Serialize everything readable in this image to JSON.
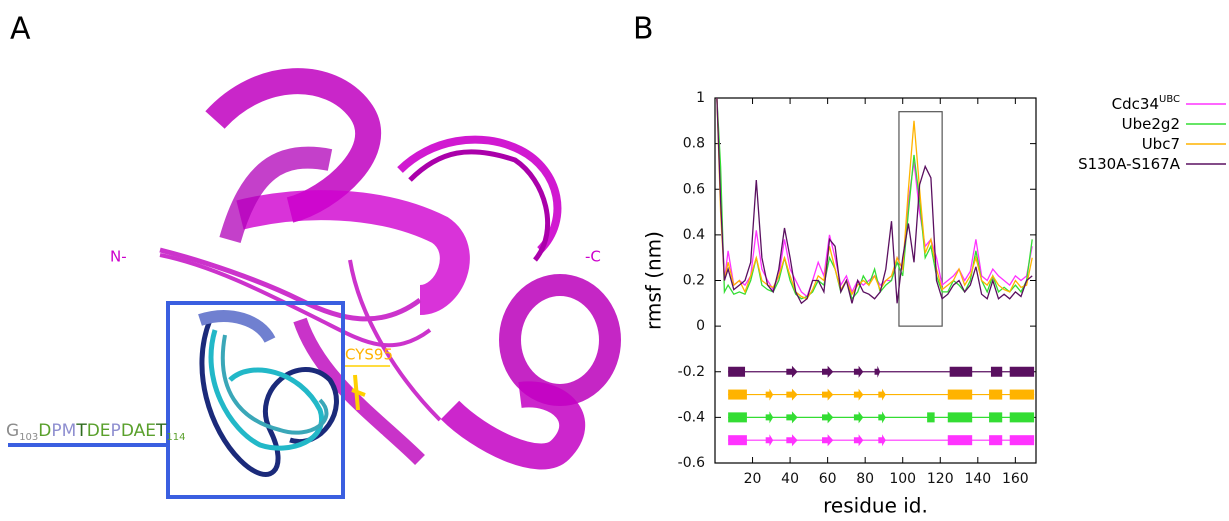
{
  "panel_a": {
    "label": "A",
    "n_label": "N-",
    "c_label": "-C",
    "residue_label": "CYS95",
    "sequence": [
      {
        "text": "G",
        "color": "#8c8c8c"
      },
      {
        "text": "103",
        "color": "#8c8c8c",
        "sub": true
      },
      {
        "text": "D",
        "color": "#5aa02c"
      },
      {
        "text": "P",
        "color": "#8f8fd0"
      },
      {
        "text": "M",
        "color": "#8f8fd0"
      },
      {
        "text": "T",
        "color": "#2e6b1e"
      },
      {
        "text": "D",
        "color": "#5aa02c"
      },
      {
        "text": "E",
        "color": "#5aa02c"
      },
      {
        "text": "P",
        "color": "#8f8fd0"
      },
      {
        "text": "D",
        "color": "#5aa02c"
      },
      {
        "text": "A",
        "color": "#5aa02c"
      },
      {
        "text": "E",
        "color": "#5aa02c"
      },
      {
        "text": "T",
        "color": "#2e6b1e"
      },
      {
        "text": "114",
        "color": "#5aa02c",
        "sub": true
      }
    ]
  },
  "chart_data": {
    "type": "line",
    "panel_label": "B",
    "x_label": "residue id.",
    "y_label": "rmsf (nm)",
    "xlim": [
      0,
      171
    ],
    "ylim": [
      -0.6,
      1
    ],
    "xticks": [
      20,
      40,
      60,
      80,
      100,
      120,
      140,
      160
    ],
    "yticks": [
      -0.6,
      -0.4,
      -0.2,
      0,
      0.2,
      0.4,
      0.6,
      0.8,
      1
    ],
    "x": [
      1,
      3,
      5,
      7,
      10,
      13,
      16,
      19,
      22,
      25,
      28,
      31,
      34,
      37,
      40,
      43,
      46,
      49,
      52,
      55,
      58,
      61,
      64,
      67,
      70,
      73,
      76,
      79,
      82,
      85,
      88,
      91,
      94,
      97,
      100,
      103,
      106,
      109,
      112,
      115,
      118,
      121,
      124,
      127,
      130,
      133,
      136,
      139,
      142,
      145,
      148,
      151,
      154,
      157,
      160,
      163,
      166,
      169
    ],
    "series": [
      {
        "name": "Cdc34",
        "name_superscript": "UBC",
        "color": "#ff33ff",
        "values": [
          1.0,
          0.6,
          0.2,
          0.33,
          0.18,
          0.2,
          0.18,
          0.22,
          0.42,
          0.25,
          0.2,
          0.16,
          0.22,
          0.38,
          0.25,
          0.2,
          0.15,
          0.13,
          0.2,
          0.28,
          0.22,
          0.4,
          0.3,
          0.18,
          0.22,
          0.15,
          0.2,
          0.18,
          0.2,
          0.22,
          0.18,
          0.2,
          0.2,
          0.3,
          0.25,
          0.55,
          0.72,
          0.5,
          0.35,
          0.38,
          0.3,
          0.18,
          0.2,
          0.22,
          0.25,
          0.2,
          0.24,
          0.38,
          0.22,
          0.2,
          0.25,
          0.22,
          0.2,
          0.18,
          0.22,
          0.2,
          0.22,
          0.35
        ]
      },
      {
        "name": "Ube2g2",
        "color": "#33dd33",
        "values": [
          1.0,
          0.7,
          0.15,
          0.18,
          0.14,
          0.15,
          0.14,
          0.2,
          0.3,
          0.18,
          0.16,
          0.15,
          0.2,
          0.3,
          0.2,
          0.14,
          0.12,
          0.13,
          0.15,
          0.2,
          0.18,
          0.3,
          0.25,
          0.15,
          0.2,
          0.12,
          0.15,
          0.22,
          0.18,
          0.25,
          0.15,
          0.18,
          0.2,
          0.28,
          0.22,
          0.5,
          0.75,
          0.55,
          0.3,
          0.35,
          0.22,
          0.15,
          0.15,
          0.2,
          0.18,
          0.15,
          0.2,
          0.33,
          0.2,
          0.15,
          0.22,
          0.15,
          0.17,
          0.15,
          0.18,
          0.15,
          0.2,
          0.38
        ]
      },
      {
        "name": "Ubc7",
        "color": "#ffb300",
        "values": [
          1.0,
          0.5,
          0.2,
          0.28,
          0.18,
          0.2,
          0.15,
          0.22,
          0.3,
          0.2,
          0.18,
          0.17,
          0.22,
          0.3,
          0.22,
          0.15,
          0.13,
          0.12,
          0.16,
          0.22,
          0.2,
          0.35,
          0.25,
          0.16,
          0.2,
          0.14,
          0.18,
          0.2,
          0.18,
          0.22,
          0.16,
          0.2,
          0.22,
          0.3,
          0.25,
          0.6,
          0.9,
          0.6,
          0.32,
          0.38,
          0.25,
          0.16,
          0.18,
          0.2,
          0.25,
          0.18,
          0.22,
          0.3,
          0.2,
          0.18,
          0.22,
          0.18,
          0.16,
          0.15,
          0.2,
          0.17,
          0.18,
          0.3
        ]
      },
      {
        "name": "S130A-S167A",
        "color": "#5a1060",
        "values": [
          1.0,
          0.55,
          0.2,
          0.25,
          0.16,
          0.18,
          0.2,
          0.28,
          0.64,
          0.3,
          0.18,
          0.15,
          0.25,
          0.43,
          0.3,
          0.15,
          0.1,
          0.12,
          0.2,
          0.2,
          0.15,
          0.38,
          0.35,
          0.15,
          0.2,
          0.1,
          0.2,
          0.15,
          0.14,
          0.12,
          0.15,
          0.25,
          0.46,
          0.1,
          0.3,
          0.45,
          0.28,
          0.62,
          0.7,
          0.65,
          0.2,
          0.12,
          0.14,
          0.18,
          0.2,
          0.15,
          0.18,
          0.26,
          0.14,
          0.12,
          0.2,
          0.12,
          0.14,
          0.12,
          0.15,
          0.13,
          0.2,
          0.22
        ]
      }
    ],
    "highlight": {
      "x": [
        98,
        121
      ],
      "y": [
        0,
        0.94
      ]
    },
    "secondary_structure": [
      {
        "y": -0.2,
        "color": "#5a1060",
        "range": [
          7,
          170
        ],
        "helices": [
          [
            7,
            16
          ],
          [
            125,
            137
          ],
          [
            147,
            153
          ],
          [
            157,
            170
          ]
        ],
        "strands": [
          [
            38,
            44
          ],
          [
            57,
            63
          ],
          [
            74,
            79
          ],
          [
            85,
            88
          ]
        ]
      },
      {
        "y": -0.3,
        "color": "#ffb300",
        "range": [
          7,
          170
        ],
        "helices": [
          [
            7,
            17
          ],
          [
            124,
            137
          ],
          [
            146,
            153
          ],
          [
            157,
            170
          ]
        ],
        "strands": [
          [
            27,
            31
          ],
          [
            38,
            44
          ],
          [
            57,
            63
          ],
          [
            74,
            79
          ],
          [
            87,
            91
          ]
        ]
      },
      {
        "y": -0.4,
        "color": "#33dd33",
        "range": [
          7,
          170
        ],
        "helices": [
          [
            7,
            17
          ],
          [
            113,
            117
          ],
          [
            124,
            137
          ],
          [
            146,
            153
          ],
          [
            157,
            170
          ]
        ],
        "strands": [
          [
            27,
            31
          ],
          [
            38,
            44
          ],
          [
            57,
            63
          ],
          [
            74,
            79
          ],
          [
            87,
            91
          ]
        ]
      },
      {
        "y": -0.5,
        "color": "#ff33ff",
        "range": [
          7,
          170
        ],
        "helices": [
          [
            7,
            17
          ],
          [
            124,
            137
          ],
          [
            146,
            153
          ],
          [
            157,
            170
          ]
        ],
        "strands": [
          [
            27,
            31
          ],
          [
            38,
            44
          ],
          [
            57,
            63
          ],
          [
            74,
            79
          ],
          [
            87,
            91
          ]
        ]
      }
    ]
  }
}
